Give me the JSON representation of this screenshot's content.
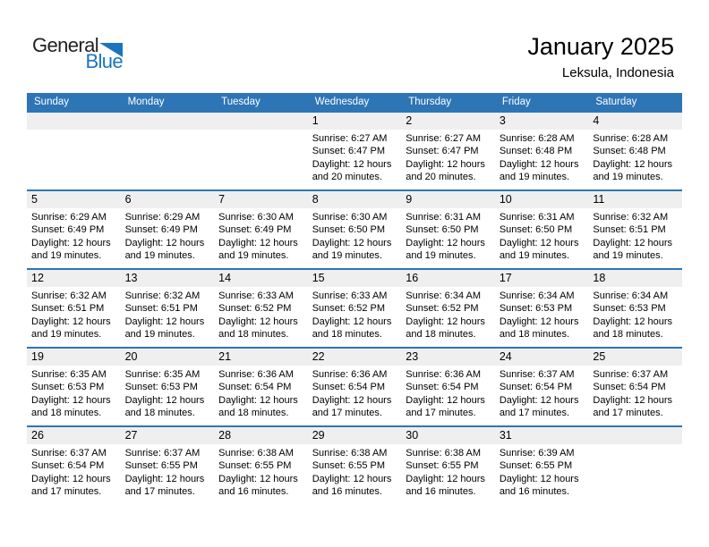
{
  "logo": {
    "general_text": "General",
    "blue_text": "Blue"
  },
  "header": {
    "title": "January 2025",
    "subtitle": "Leksula, Indonesia"
  },
  "colors": {
    "header_bar": "#2E75B6",
    "week_separator": "#2E75B6",
    "day_number_strip": "#EFEFEF",
    "logo_blue": "#1C75BC",
    "header_text": "#FFFFFF",
    "body_text": "#000000"
  },
  "calendar": {
    "day_headers": [
      "Sunday",
      "Monday",
      "Tuesday",
      "Wednesday",
      "Thursday",
      "Friday",
      "Saturday"
    ],
    "weeks": [
      [
        null,
        null,
        null,
        {
          "day": "1",
          "lines": [
            "Sunrise: 6:27 AM",
            "Sunset: 6:47 PM",
            "Daylight: 12 hours",
            "and 20 minutes."
          ]
        },
        {
          "day": "2",
          "lines": [
            "Sunrise: 6:27 AM",
            "Sunset: 6:47 PM",
            "Daylight: 12 hours",
            "and 20 minutes."
          ]
        },
        {
          "day": "3",
          "lines": [
            "Sunrise: 6:28 AM",
            "Sunset: 6:48 PM",
            "Daylight: 12 hours",
            "and 19 minutes."
          ]
        },
        {
          "day": "4",
          "lines": [
            "Sunrise: 6:28 AM",
            "Sunset: 6:48 PM",
            "Daylight: 12 hours",
            "and 19 minutes."
          ]
        }
      ],
      [
        {
          "day": "5",
          "lines": [
            "Sunrise: 6:29 AM",
            "Sunset: 6:49 PM",
            "Daylight: 12 hours",
            "and 19 minutes."
          ]
        },
        {
          "day": "6",
          "lines": [
            "Sunrise: 6:29 AM",
            "Sunset: 6:49 PM",
            "Daylight: 12 hours",
            "and 19 minutes."
          ]
        },
        {
          "day": "7",
          "lines": [
            "Sunrise: 6:30 AM",
            "Sunset: 6:49 PM",
            "Daylight: 12 hours",
            "and 19 minutes."
          ]
        },
        {
          "day": "8",
          "lines": [
            "Sunrise: 6:30 AM",
            "Sunset: 6:50 PM",
            "Daylight: 12 hours",
            "and 19 minutes."
          ]
        },
        {
          "day": "9",
          "lines": [
            "Sunrise: 6:31 AM",
            "Sunset: 6:50 PM",
            "Daylight: 12 hours",
            "and 19 minutes."
          ]
        },
        {
          "day": "10",
          "lines": [
            "Sunrise: 6:31 AM",
            "Sunset: 6:50 PM",
            "Daylight: 12 hours",
            "and 19 minutes."
          ]
        },
        {
          "day": "11",
          "lines": [
            "Sunrise: 6:32 AM",
            "Sunset: 6:51 PM",
            "Daylight: 12 hours",
            "and 19 minutes."
          ]
        }
      ],
      [
        {
          "day": "12",
          "lines": [
            "Sunrise: 6:32 AM",
            "Sunset: 6:51 PM",
            "Daylight: 12 hours",
            "and 19 minutes."
          ]
        },
        {
          "day": "13",
          "lines": [
            "Sunrise: 6:32 AM",
            "Sunset: 6:51 PM",
            "Daylight: 12 hours",
            "and 19 minutes."
          ]
        },
        {
          "day": "14",
          "lines": [
            "Sunrise: 6:33 AM",
            "Sunset: 6:52 PM",
            "Daylight: 12 hours",
            "and 18 minutes."
          ]
        },
        {
          "day": "15",
          "lines": [
            "Sunrise: 6:33 AM",
            "Sunset: 6:52 PM",
            "Daylight: 12 hours",
            "and 18 minutes."
          ]
        },
        {
          "day": "16",
          "lines": [
            "Sunrise: 6:34 AM",
            "Sunset: 6:52 PM",
            "Daylight: 12 hours",
            "and 18 minutes."
          ]
        },
        {
          "day": "17",
          "lines": [
            "Sunrise: 6:34 AM",
            "Sunset: 6:53 PM",
            "Daylight: 12 hours",
            "and 18 minutes."
          ]
        },
        {
          "day": "18",
          "lines": [
            "Sunrise: 6:34 AM",
            "Sunset: 6:53 PM",
            "Daylight: 12 hours",
            "and 18 minutes."
          ]
        }
      ],
      [
        {
          "day": "19",
          "lines": [
            "Sunrise: 6:35 AM",
            "Sunset: 6:53 PM",
            "Daylight: 12 hours",
            "and 18 minutes."
          ]
        },
        {
          "day": "20",
          "lines": [
            "Sunrise: 6:35 AM",
            "Sunset: 6:53 PM",
            "Daylight: 12 hours",
            "and 18 minutes."
          ]
        },
        {
          "day": "21",
          "lines": [
            "Sunrise: 6:36 AM",
            "Sunset: 6:54 PM",
            "Daylight: 12 hours",
            "and 18 minutes."
          ]
        },
        {
          "day": "22",
          "lines": [
            "Sunrise: 6:36 AM",
            "Sunset: 6:54 PM",
            "Daylight: 12 hours",
            "and 17 minutes."
          ]
        },
        {
          "day": "23",
          "lines": [
            "Sunrise: 6:36 AM",
            "Sunset: 6:54 PM",
            "Daylight: 12 hours",
            "and 17 minutes."
          ]
        },
        {
          "day": "24",
          "lines": [
            "Sunrise: 6:37 AM",
            "Sunset: 6:54 PM",
            "Daylight: 12 hours",
            "and 17 minutes."
          ]
        },
        {
          "day": "25",
          "lines": [
            "Sunrise: 6:37 AM",
            "Sunset: 6:54 PM",
            "Daylight: 12 hours",
            "and 17 minutes."
          ]
        }
      ],
      [
        {
          "day": "26",
          "lines": [
            "Sunrise: 6:37 AM",
            "Sunset: 6:54 PM",
            "Daylight: 12 hours",
            "and 17 minutes."
          ]
        },
        {
          "day": "27",
          "lines": [
            "Sunrise: 6:37 AM",
            "Sunset: 6:55 PM",
            "Daylight: 12 hours",
            "and 17 minutes."
          ]
        },
        {
          "day": "28",
          "lines": [
            "Sunrise: 6:38 AM",
            "Sunset: 6:55 PM",
            "Daylight: 12 hours",
            "and 16 minutes."
          ]
        },
        {
          "day": "29",
          "lines": [
            "Sunrise: 6:38 AM",
            "Sunset: 6:55 PM",
            "Daylight: 12 hours",
            "and 16 minutes."
          ]
        },
        {
          "day": "30",
          "lines": [
            "Sunrise: 6:38 AM",
            "Sunset: 6:55 PM",
            "Daylight: 12 hours",
            "and 16 minutes."
          ]
        },
        {
          "day": "31",
          "lines": [
            "Sunrise: 6:39 AM",
            "Sunset: 6:55 PM",
            "Daylight: 12 hours",
            "and 16 minutes."
          ]
        },
        null
      ]
    ]
  }
}
